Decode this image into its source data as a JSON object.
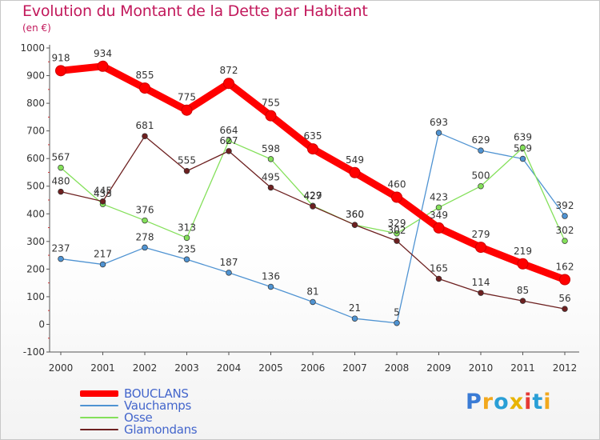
{
  "chart_data": {
    "type": "line",
    "title": "Evolution du Montant de la Dette par Habitant",
    "subtitle": "(en €)",
    "x": [
      "2000",
      "2001",
      "2002",
      "2003",
      "2004",
      "2005",
      "2006",
      "2007",
      "2008",
      "2009",
      "2010",
      "2011",
      "2012"
    ],
    "yticks": [
      "1000",
      "900",
      "800",
      "700",
      "600",
      "500",
      "400",
      "300",
      "200",
      "100",
      "0",
      "-100"
    ],
    "ylim": [
      -100,
      1000
    ],
    "grid": false,
    "legend_position": "bottom-left",
    "series": [
      {
        "name": "BOUCLANS",
        "color": "#ff0000",
        "values": [
          918,
          934,
          855,
          775,
          872,
          755,
          635,
          549,
          460,
          349,
          279,
          219,
          162
        ]
      },
      {
        "name": "Vauchamps",
        "color": "#4f93d2",
        "values": [
          237,
          217,
          278,
          235,
          187,
          136,
          81,
          21,
          5,
          693,
          629,
          599,
          392
        ]
      },
      {
        "name": "Osse",
        "color": "#84e05a",
        "values": [
          567,
          435,
          376,
          313,
          664,
          598,
          429,
          360,
          329,
          423,
          500,
          639,
          302
        ]
      },
      {
        "name": "Glamondans",
        "color": "#6d2020",
        "values": [
          480,
          445,
          681,
          555,
          627,
          495,
          427,
          360,
          302,
          165,
          114,
          85,
          56
        ]
      }
    ]
  },
  "logo": {
    "text": "Proxiti",
    "colors": [
      "#3a7bd5",
      "#f2a81d",
      "#2a9fd6",
      "#e8b400",
      "#e53935",
      "#2a9fd6",
      "#f2a81d"
    ]
  }
}
